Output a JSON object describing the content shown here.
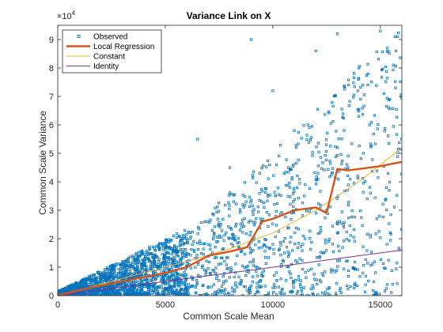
{
  "chart_data": {
    "type": "scatter",
    "title": "Variance Link on X",
    "xlabel": "Common Scale Mean",
    "ylabel": "Common Scale Variance",
    "y_exponent_label": "×10",
    "y_exponent_power": "4",
    "xlim": [
      0,
      16000
    ],
    "ylim": [
      0,
      95000
    ],
    "xticks": [
      0,
      5000,
      10000,
      15000
    ],
    "xtick_labels": [
      "0",
      "5000",
      "10000",
      "15000"
    ],
    "yticks": [
      0,
      10000,
      20000,
      30000,
      40000,
      50000,
      60000,
      70000,
      80000,
      90000
    ],
    "ytick_labels": [
      "0",
      "1",
      "2",
      "3",
      "4",
      "5",
      "6",
      "7",
      "8",
      "9"
    ],
    "grid": false,
    "legend_position": "top-left",
    "colors": {
      "observed": "#0072bd",
      "local_regression": "#d95319",
      "constant": "#edb120",
      "identity": "#7e2f8e"
    },
    "legend": [
      {
        "key": "observed",
        "label": "Observed"
      },
      {
        "key": "local_regression",
        "label": "Local Regression"
      },
      {
        "key": "constant",
        "label": "Constant"
      },
      {
        "key": "identity",
        "label": "Identity"
      }
    ],
    "observed_sample": [
      [
        1200,
        2000
      ],
      [
        2500,
        5000
      ],
      [
        4000,
        15000
      ],
      [
        5500,
        9000
      ],
      [
        6500,
        55000
      ],
      [
        8000,
        45000
      ],
      [
        9000,
        90000
      ],
      [
        10000,
        72000
      ],
      [
        11000,
        58000
      ],
      [
        12000,
        86000
      ],
      [
        13000,
        92000
      ],
      [
        14000,
        80000
      ],
      [
        15000,
        93000
      ],
      [
        15800,
        91000
      ],
      [
        14500,
        60000
      ],
      [
        13500,
        45000
      ],
      [
        12500,
        30000
      ],
      [
        11500,
        20000
      ],
      [
        10500,
        12000
      ],
      [
        9500,
        8000
      ],
      [
        8500,
        4000
      ],
      [
        7500,
        2000
      ],
      [
        7000,
        18000
      ],
      [
        6000,
        12000
      ],
      [
        3000,
        6000
      ],
      [
        2000,
        3000
      ],
      [
        1000,
        1500
      ],
      [
        500,
        600
      ]
    ],
    "local_regression": {
      "x": [
        0,
        1000,
        2000,
        3000,
        4000,
        5000,
        6000,
        7000,
        8000,
        8800,
        9500,
        10000,
        11000,
        12000,
        12500,
        13000,
        13500,
        14000,
        15000,
        16000
      ],
      "y": [
        0,
        2000,
        3500,
        5000,
        6500,
        8000,
        10000,
        14000,
        15500,
        17000,
        26000,
        27000,
        30000,
        31000,
        29000,
        44500,
        44000,
        44500,
        45500,
        47000
      ]
    },
    "constant": {
      "x": [
        0,
        2000,
        4000,
        6000,
        8000,
        10000,
        12000,
        14000,
        16000
      ],
      "y": [
        0,
        4000,
        8000,
        12000,
        16500,
        22000,
        30000,
        40000,
        52000
      ]
    },
    "identity": {
      "x": [
        0,
        4000,
        8000,
        12000,
        16000
      ],
      "y": [
        0,
        4000,
        8000,
        12000,
        16000
      ]
    }
  }
}
